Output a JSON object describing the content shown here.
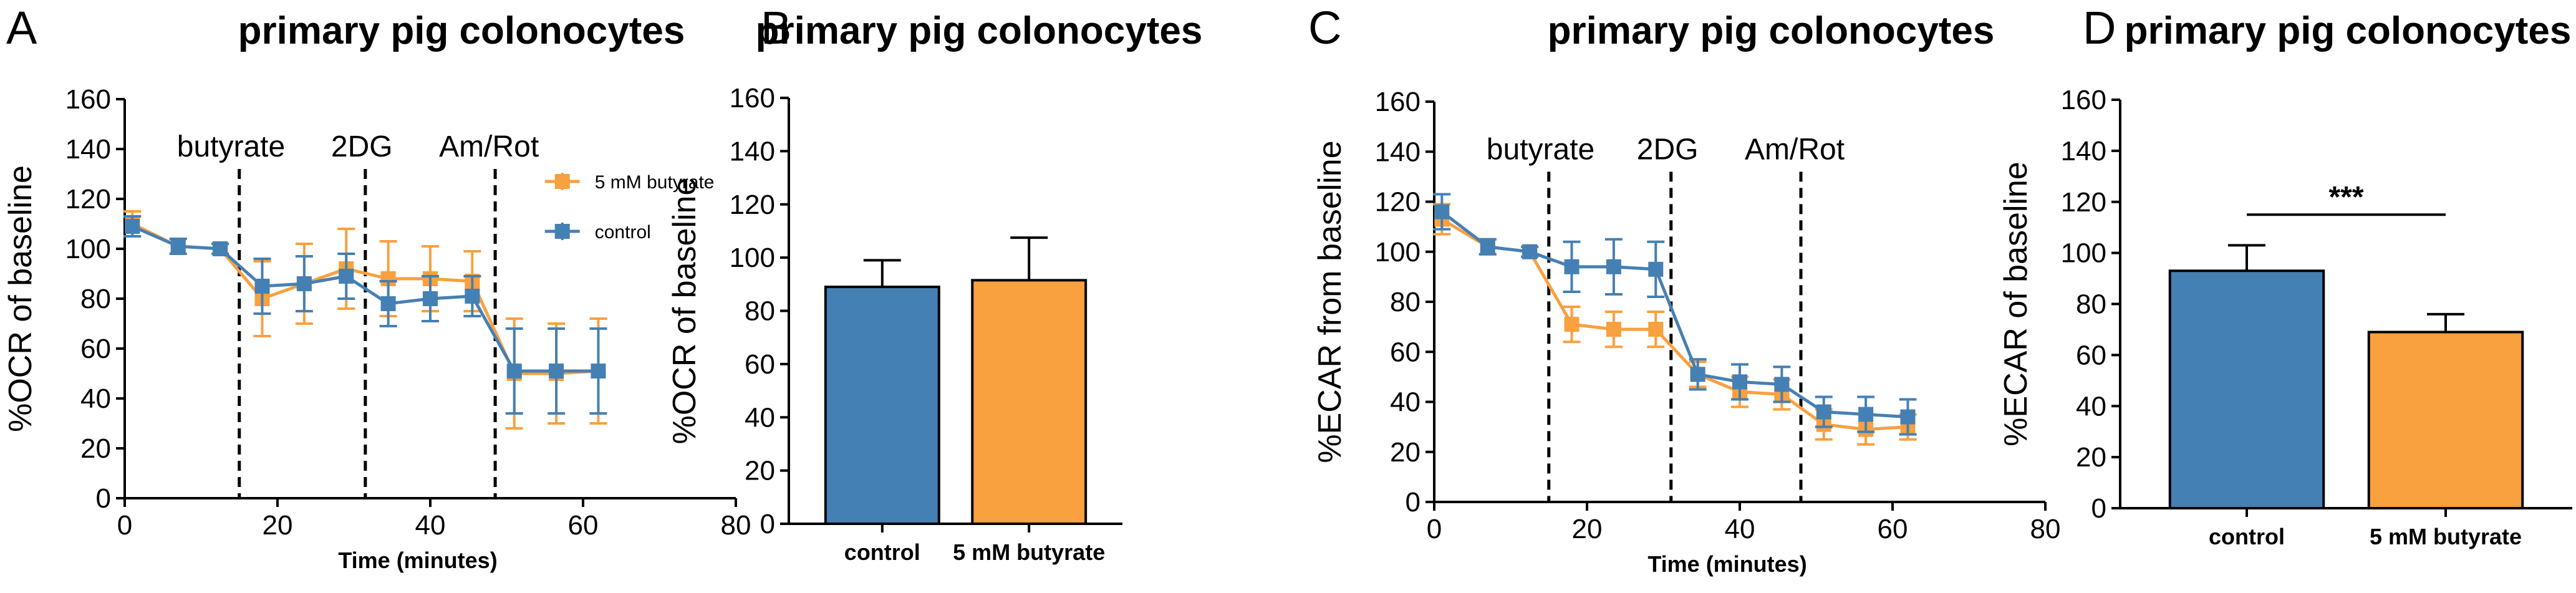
{
  "colors": {
    "control": "#4580b4",
    "butyrate": "#f9a03f",
    "axis": "#000000"
  },
  "chart_data": [
    {
      "panel": "A",
      "type": "line",
      "title": "primary pig colonocytes",
      "xlabel": "Time (minutes)",
      "ylabel": "%OCR of baseline",
      "xlim": [
        0,
        80
      ],
      "ylim": [
        0,
        160
      ],
      "xticks": [
        0,
        20,
        40,
        60,
        80
      ],
      "yticks": [
        0,
        20,
        40,
        60,
        80,
        100,
        120,
        140,
        160
      ],
      "injections": [
        {
          "label": "butyrate",
          "x": 15
        },
        {
          "label": "2DG",
          "x": 31.5
        },
        {
          "label": "Am/Rot",
          "x": 48.5
        }
      ],
      "legend": [
        "5 mM butyrate",
        "control"
      ],
      "series": [
        {
          "name": "5 mM butyrate",
          "color_key": "butyrate",
          "x": [
            1,
            7,
            12.5,
            18,
            23.5,
            29,
            34.5,
            40,
            45.5,
            51,
            56.5,
            62
          ],
          "y": [
            110,
            101,
            100,
            80,
            86,
            92,
            88,
            88,
            87,
            50,
            50,
            51
          ],
          "err": [
            5,
            3,
            2,
            15,
            16,
            16,
            15,
            13,
            12,
            22,
            20,
            21
          ]
        },
        {
          "name": "control",
          "color_key": "control",
          "x": [
            1,
            7,
            12.5,
            18,
            23.5,
            29,
            34.5,
            40,
            45.5,
            51,
            56.5,
            62
          ],
          "y": [
            109,
            101,
            100,
            85,
            86,
            89,
            78,
            80,
            81,
            51,
            51,
            51
          ],
          "err": [
            4,
            3,
            2,
            11,
            11,
            9,
            9,
            9,
            8,
            17,
            17,
            17
          ]
        }
      ]
    },
    {
      "panel": "B",
      "type": "bar",
      "title": "primary pig colonocytes",
      "ylabel": "%OCR of baseline",
      "ylim": [
        0,
        160
      ],
      "yticks": [
        0,
        20,
        40,
        60,
        80,
        100,
        120,
        140,
        160
      ],
      "categories": [
        "control",
        "5 mM butyrate"
      ],
      "values": [
        89,
        91.5
      ],
      "errors": [
        10,
        16
      ],
      "color_keys": [
        "control",
        "butyrate"
      ]
    },
    {
      "panel": "C",
      "type": "line",
      "title": "primary pig colonocytes",
      "xlabel": "Time (minutes)",
      "ylabel": "%ECAR from baseline",
      "xlim": [
        0,
        80
      ],
      "ylim": [
        0,
        160
      ],
      "xticks": [
        0,
        20,
        40,
        60,
        80
      ],
      "yticks": [
        0,
        20,
        40,
        60,
        80,
        100,
        120,
        140,
        160
      ],
      "injections": [
        {
          "label": "butyrate",
          "x": 15
        },
        {
          "label": "2DG",
          "x": 31
        },
        {
          "label": "Am/Rot",
          "x": 48
        }
      ],
      "series": [
        {
          "name": "5 mM butyrate",
          "color_key": "butyrate",
          "x": [
            1,
            7,
            12.5,
            18,
            23.5,
            29,
            34.5,
            40,
            45.5,
            51,
            56.5,
            62
          ],
          "y": [
            113,
            102,
            100,
            71,
            69,
            69,
            51,
            44,
            43,
            31,
            29,
            30
          ],
          "err": [
            6,
            3,
            2,
            7,
            7,
            7,
            5,
            6,
            6,
            6,
            6,
            5
          ]
        },
        {
          "name": "control",
          "color_key": "control",
          "x": [
            1,
            7,
            12.5,
            18,
            23.5,
            29,
            34.5,
            40,
            45.5,
            51,
            56.5,
            62
          ],
          "y": [
            116,
            102,
            100,
            94,
            94,
            93,
            51,
            48,
            47,
            36,
            35,
            34
          ],
          "err": [
            7,
            3,
            2,
            10,
            11,
            11,
            6,
            7,
            7,
            6,
            7,
            7
          ]
        }
      ]
    },
    {
      "panel": "D",
      "type": "bar",
      "title": "primary pig colonocytes",
      "ylabel": "%ECAR of baseline",
      "ylim": [
        0,
        160
      ],
      "yticks": [
        0,
        20,
        40,
        60,
        80,
        100,
        120,
        140,
        160
      ],
      "categories": [
        "control",
        "5 mM butyrate"
      ],
      "values": [
        93,
        69
      ],
      "errors": [
        10,
        7
      ],
      "color_keys": [
        "control",
        "butyrate"
      ],
      "significance": "***"
    }
  ]
}
